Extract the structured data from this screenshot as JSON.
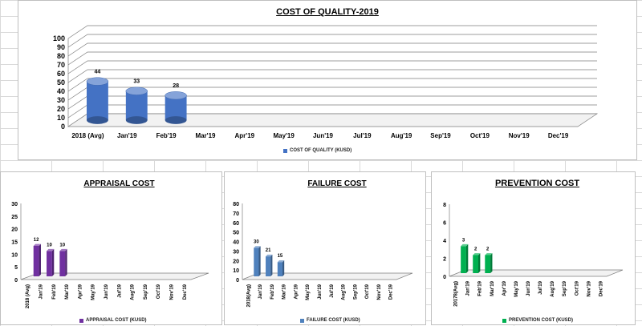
{
  "colors": {
    "main": "#4472c4",
    "appraisal": "#7030a0",
    "failure": "#4f81bd",
    "prevention": "#00b050"
  },
  "chart_data": [
    {
      "type": "bar",
      "title": "COST OF QUALITY-2019",
      "categories": [
        "2018 (Avg)",
        "Jan'19",
        "Feb'19",
        "Mar'19",
        "Apr'19",
        "May'19",
        "Jun'19",
        "Jul'19",
        "Aug'19",
        "Sep'19",
        "Oct'19",
        "Nov'19",
        "Dec'19"
      ],
      "series": [
        {
          "name": "COST OF QUALITY (KUSD)",
          "values": [
            44,
            33,
            28,
            null,
            null,
            null,
            null,
            null,
            null,
            null,
            null,
            null,
            null
          ]
        }
      ],
      "data_labels": [
        "44",
        "33",
        "28"
      ],
      "yticks": [
        "0",
        "10",
        "20",
        "30",
        "40",
        "50",
        "60",
        "70",
        "80",
        "90",
        "100"
      ],
      "ylim": [
        0,
        100
      ],
      "grid": true,
      "legend": "bottom"
    },
    {
      "type": "bar",
      "title": "APPRAISAL COST",
      "categories": [
        "2018 (Avg)",
        "Jan'19",
        "Feb'19",
        "Mar'19",
        "Apr'19",
        "May'19",
        "Jun'19",
        "Jul'19",
        "Aug'19",
        "Sep'19",
        "Oct'19",
        "Nov'19",
        "Dec'19"
      ],
      "series": [
        {
          "name": "APPRAISAL COST (KUSD)",
          "values": [
            12,
            10,
            10,
            null,
            null,
            null,
            null,
            null,
            null,
            null,
            null,
            null,
            null
          ]
        }
      ],
      "data_labels": [
        "12",
        "10",
        "10"
      ],
      "yticks": [
        "0",
        "5",
        "10",
        "15",
        "20",
        "25",
        "30"
      ],
      "ylim": [
        0,
        30
      ],
      "grid": false,
      "legend": "bottom"
    },
    {
      "type": "bar",
      "title": "FAILURE COST",
      "categories": [
        "2018(Avg)",
        "Jan'19",
        "Feb'19",
        "Mar'19",
        "Apr'19",
        "May'19",
        "Jun'19",
        "Jul'19",
        "Aug'19",
        "Sep'19",
        "Oct'19",
        "Nov'19",
        "Dec'19"
      ],
      "series": [
        {
          "name": "FAILURE COST (KUSD)",
          "values": [
            30,
            21,
            15,
            null,
            null,
            null,
            null,
            null,
            null,
            null,
            null,
            null,
            null
          ]
        }
      ],
      "data_labels": [
        "30",
        "21",
        "15"
      ],
      "yticks": [
        "0",
        "10",
        "20",
        "30",
        "40",
        "50",
        "60",
        "70",
        "80"
      ],
      "ylim": [
        0,
        80
      ],
      "grid": false,
      "legend": "bottom"
    },
    {
      "type": "bar",
      "title": "PREVENTION COST",
      "categories": [
        "20178(Avg)",
        "Jan'19",
        "Feb'19",
        "Mar'19",
        "Apr'19",
        "May'19",
        "Jun'19",
        "Jul'19",
        "Aug'19",
        "Sep'19",
        "Oct'19",
        "Nov'19",
        "Dec'19"
      ],
      "series": [
        {
          "name": "PREVENTION COST (KUSD)",
          "values": [
            3,
            2,
            2,
            null,
            null,
            null,
            null,
            null,
            null,
            null,
            null,
            null,
            null
          ]
        }
      ],
      "data_labels": [
        "3",
        "2",
        "2"
      ],
      "yticks": [
        "0",
        "2",
        "4",
        "6",
        "8"
      ],
      "ylim": [
        0,
        8
      ],
      "grid": false,
      "legend": "bottom"
    }
  ]
}
